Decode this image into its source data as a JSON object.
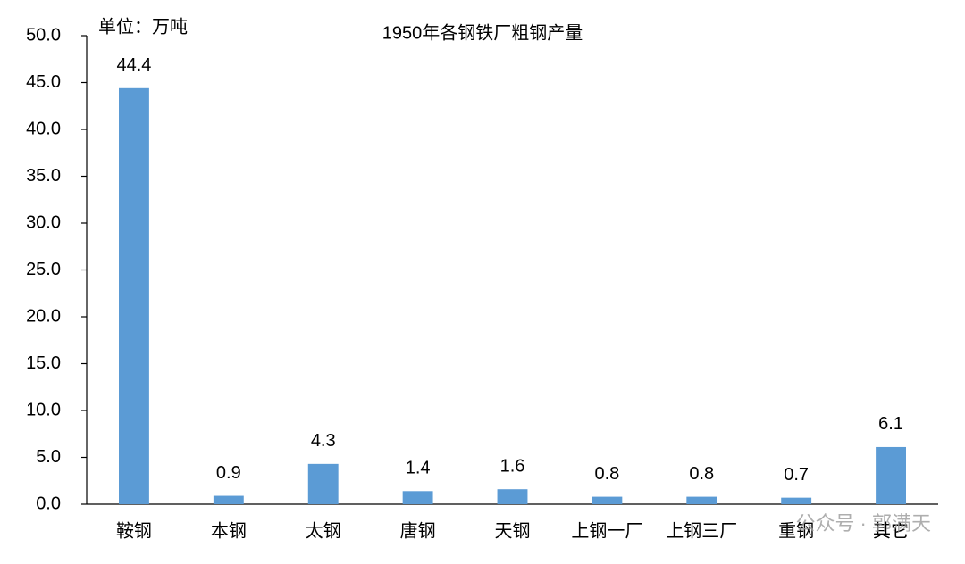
{
  "chart_data": {
    "type": "bar",
    "title": "1950年各钢铁厂粗钢产量",
    "unit_label": "单位：万吨",
    "categories": [
      "鞍钢",
      "本钢",
      "太钢",
      "唐钢",
      "天钢",
      "上钢一厂",
      "上钢三厂",
      "重钢",
      "其它"
    ],
    "values": [
      44.4,
      0.9,
      4.3,
      1.4,
      1.6,
      0.8,
      0.8,
      0.7,
      6.1
    ],
    "color": "#5b9bd5",
    "ylim": [
      0,
      50
    ],
    "yticks": [
      {
        "value": 0,
        "label": "0.0"
      },
      {
        "value": 5,
        "label": "5.0"
      },
      {
        "value": 10,
        "label": "10.0"
      },
      {
        "value": 15,
        "label": "15.0"
      },
      {
        "value": 20,
        "label": "20.0"
      },
      {
        "value": 25,
        "label": "25.0"
      },
      {
        "value": 30,
        "label": "30.0"
      },
      {
        "value": 35,
        "label": "35.0"
      },
      {
        "value": 40,
        "label": "40.0"
      },
      {
        "value": 45,
        "label": "45.0"
      },
      {
        "value": 50,
        "label": "50.0"
      }
    ],
    "grid": false,
    "watermark": "公众号 · 郭满天"
  }
}
